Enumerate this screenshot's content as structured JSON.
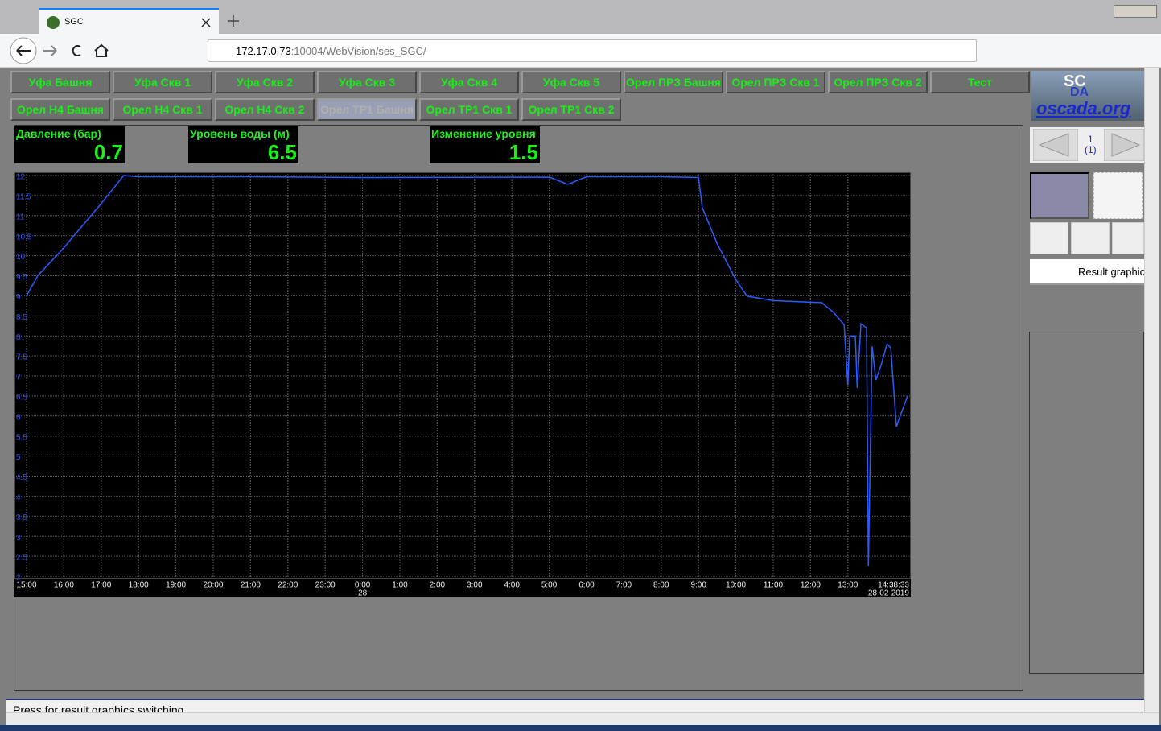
{
  "browser": {
    "tab_title": "SGC",
    "url_host": "172.17.0.73",
    "url_rest": ":10004/WebVision/ses_SGC/"
  },
  "buttons": [
    [
      "Уфа Башня",
      "Уфа Скв 1",
      "Уфа Скв 2",
      "Уфа Скв 3",
      "Уфа Скв 4",
      "Уфа Скв 5",
      "Орел ПРЗ Башня",
      "Орел ПРЗ Скв 1",
      "Орел ПРЗ Скв 2",
      "Тест"
    ],
    [
      "Орел Н4 Башня",
      "Орел Н4 Скв 1",
      "Орел Н4 Скв 2",
      "Орел ТР1 Башня",
      "Орел ТР1 Скв 1",
      "Орел ТР1 Скв 2"
    ]
  ],
  "indicators": [
    {
      "label": "Давление (бар)",
      "value": 0.7
    },
    {
      "label": "Уровень воды (м)",
      "value": 6.5
    },
    {
      "label": "Изменение уровня",
      "value": 1.5
    }
  ],
  "chart_data": {
    "type": "line",
    "color": "#2a5cff",
    "grid": true,
    "xlim": [
      0,
      23.6425
    ],
    "xticks": [
      {
        "value": 0,
        "label": "15:00"
      },
      {
        "value": 1,
        "label": "16:00"
      },
      {
        "value": 2,
        "label": "17:00"
      },
      {
        "value": 3,
        "label": "18:00"
      },
      {
        "value": 4,
        "label": "19:00"
      },
      {
        "value": 5,
        "label": "20:00"
      },
      {
        "value": 6,
        "label": "21:00"
      },
      {
        "value": 7,
        "label": "22:00"
      },
      {
        "value": 8,
        "label": "23:00"
      },
      {
        "value": 9,
        "label": "0:00"
      },
      {
        "value": 10,
        "label": "1:00"
      },
      {
        "value": 11,
        "label": "2:00"
      },
      {
        "value": 12,
        "label": "3:00"
      },
      {
        "value": 13,
        "label": "4:00"
      },
      {
        "value": 14,
        "label": "5:00"
      },
      {
        "value": 15,
        "label": "6:00"
      },
      {
        "value": 16,
        "label": "7:00"
      },
      {
        "value": 17,
        "label": "8:00"
      },
      {
        "value": 18,
        "label": "9:00"
      },
      {
        "value": 19,
        "label": "10:00"
      },
      {
        "value": 20,
        "label": "11:00"
      },
      {
        "value": 21,
        "label": "12:00"
      },
      {
        "value": 22,
        "label": "13:00"
      }
    ],
    "day_label": "28",
    "end_time": "14:38:33",
    "end_date": "28-02-2019",
    "ylim": [
      2,
      12
    ],
    "yticks": [
      2,
      2.5,
      3,
      3.5,
      4,
      4.5,
      5,
      5.5,
      6,
      6.5,
      7,
      7.5,
      8,
      8.5,
      9,
      9.5,
      10,
      10.5,
      11,
      11.5,
      12
    ],
    "x": [
      0,
      0.3,
      1,
      2,
      2.6,
      3,
      6,
      9,
      14,
      14.5,
      15,
      17,
      18,
      18.1,
      18.5,
      19,
      19.3,
      20,
      21,
      21.3,
      21.6,
      21.9,
      22,
      22.05,
      22.2,
      22.25,
      22.35,
      22.5,
      22.55,
      22.65,
      22.75,
      22.9,
      23.05,
      23.15,
      23.3,
      23.4,
      23.6
    ],
    "values": [
      9.0,
      9.5,
      10.2,
      11.3,
      12.0,
      11.97,
      11.97,
      11.95,
      11.96,
      11.78,
      11.97,
      11.97,
      11.95,
      11.2,
      10.3,
      9.4,
      8.99,
      8.88,
      8.84,
      8.83,
      8.6,
      8.28,
      6.78,
      8.0,
      8.0,
      6.7,
      8.3,
      8.2,
      2.26,
      7.74,
      6.9,
      7.3,
      7.8,
      7.7,
      5.73,
      6.0,
      6.5
    ]
  },
  "side": {
    "logo_top": "SC",
    "logo_mid": "DA",
    "logo_site": "oscada.org",
    "page_num": "1",
    "page_total": "(1)",
    "result": "Result graphic"
  },
  "status": "Press for result graphics switching"
}
